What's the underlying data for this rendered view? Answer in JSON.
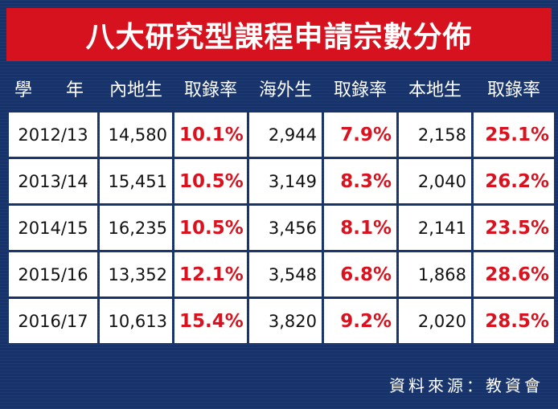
{
  "chart_data": {
    "type": "table",
    "title": "八大研究型課程申請宗數分佈",
    "headers": [
      "學　年",
      "內地生",
      "取錄率",
      "海外生",
      "取錄率",
      "本地生",
      "取錄率"
    ],
    "rows": [
      [
        "2012/13",
        "14,580",
        "10.1%",
        "2,944",
        "7.9%",
        "2,158",
        "25.1%"
      ],
      [
        "2013/14",
        "15,451",
        "10.5%",
        "3,149",
        "8.3%",
        "2,040",
        "26.2%"
      ],
      [
        "2014/15",
        "16,235",
        "10.5%",
        "3,456",
        "8.1%",
        "2,141",
        "23.5%"
      ],
      [
        "2015/16",
        "13,352",
        "12.1%",
        "3,548",
        "6.8%",
        "1,868",
        "28.6%"
      ],
      [
        "2016/17",
        "10,613",
        "15.4%",
        "3,820",
        "9.2%",
        "2,020",
        "28.5%"
      ]
    ],
    "source": "資料來源：教資會"
  },
  "colors": {
    "background": "#16336c",
    "title_bar": "#d6121f",
    "rate_text": "#d8121e"
  }
}
